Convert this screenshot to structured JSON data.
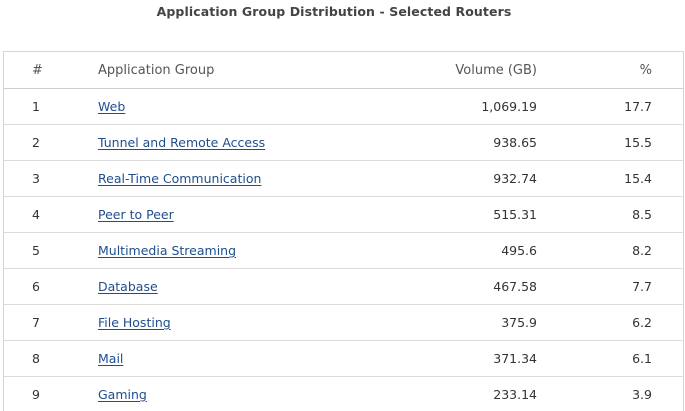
{
  "title": "Application Group Distribution - Selected Routers",
  "table": {
    "headers": {
      "num": "#",
      "group": "Application Group",
      "volume": "Volume (GB)",
      "percent": "%"
    },
    "rows": [
      {
        "num": "1",
        "group": "Web",
        "volume": "1,069.19",
        "percent": "17.7"
      },
      {
        "num": "2",
        "group": "Tunnel and Remote Access",
        "volume": "938.65",
        "percent": "15.5"
      },
      {
        "num": "3",
        "group": "Real-Time Communication",
        "volume": "932.74",
        "percent": "15.4"
      },
      {
        "num": "4",
        "group": "Peer to Peer",
        "volume": "515.31",
        "percent": "8.5"
      },
      {
        "num": "5",
        "group": "Multimedia Streaming",
        "volume": "495.6",
        "percent": "8.2"
      },
      {
        "num": "6",
        "group": "Database",
        "volume": "467.58",
        "percent": "7.7"
      },
      {
        "num": "7",
        "group": "File Hosting",
        "volume": "375.9",
        "percent": "6.2"
      },
      {
        "num": "8",
        "group": "Mail",
        "volume": "371.34",
        "percent": "6.1"
      },
      {
        "num": "9",
        "group": "Gaming",
        "volume": "233.14",
        "percent": "3.9"
      }
    ]
  },
  "colors": {
    "link": "#1f4e8c",
    "border": "#dcdcdc",
    "text": "#333333"
  }
}
